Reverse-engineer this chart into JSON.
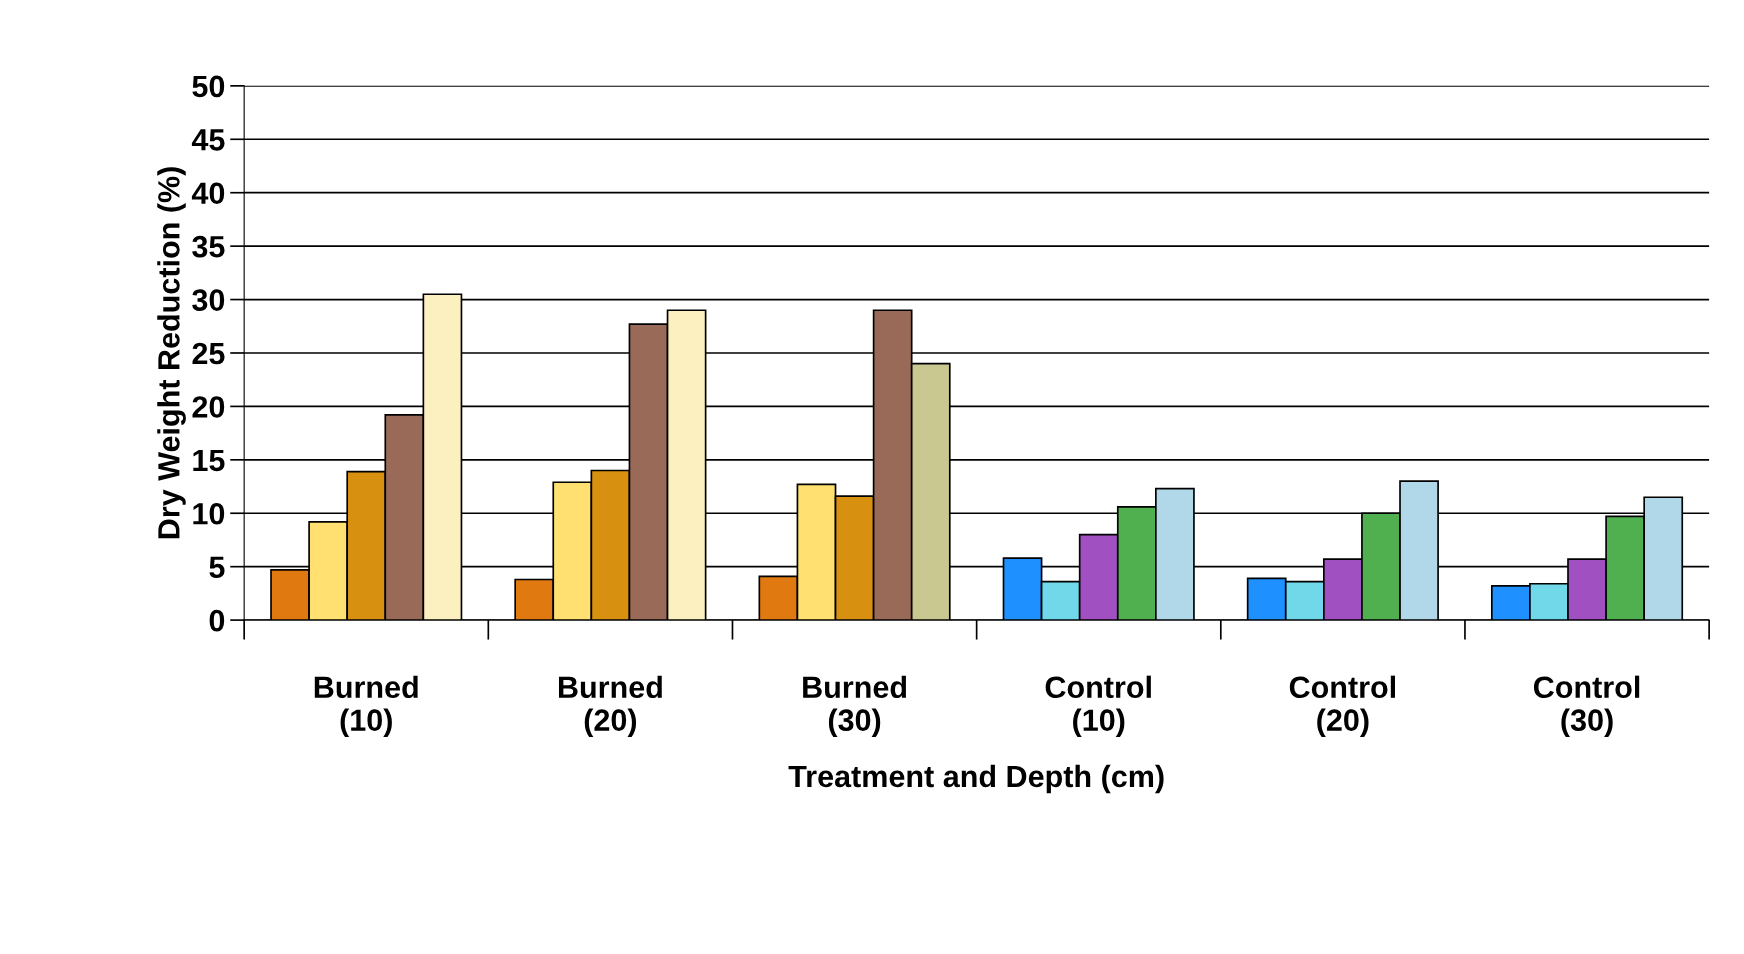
{
  "chart_data": {
    "type": "bar",
    "xlabel": "Treatment and Depth (cm)",
    "ylabel": "Dry Weight Reduction (%)",
    "categories": [
      "Burned\n(10)",
      "Burned\n(20)",
      "Burned\n(30)",
      "Control\n(10)",
      "Control\n(20)",
      "Control\n(30)"
    ],
    "series": [
      {
        "colors": [
          "#e07a10",
          "#e07a10",
          "#e07a10",
          "#1e90ff",
          "#1e90ff",
          "#1e90ff"
        ],
        "values": [
          4.7,
          3.8,
          4.1,
          5.8,
          3.9,
          3.2
        ]
      },
      {
        "colors": [
          "#ffe070",
          "#ffe070",
          "#ffe070",
          "#70d8e8",
          "#70d8e8",
          "#70d8e8"
        ],
        "values": [
          9.2,
          12.9,
          12.7,
          3.6,
          3.6,
          3.4
        ]
      },
      {
        "colors": [
          "#d89010",
          "#d89010",
          "#d89010",
          "#a050c0",
          "#a050c0",
          "#a050c0"
        ],
        "values": [
          13.9,
          14.0,
          11.6,
          8.0,
          5.7,
          5.7
        ]
      },
      {
        "colors": [
          "#9a6a58",
          "#9a6a58",
          "#9a6a58",
          "#50b050",
          "#50b050",
          "#50b050"
        ],
        "values": [
          19.2,
          27.7,
          29.0,
          10.6,
          10.0,
          9.7
        ]
      },
      {
        "colors": [
          "#fdf0c0",
          "#fdf0c0",
          "#c8c890",
          "#b0d8e8",
          "#b0d8e8",
          "#b0d8e8"
        ],
        "values": [
          30.5,
          29.0,
          24.0,
          12.3,
          13.0,
          11.5
        ]
      }
    ],
    "ylim": [
      0,
      50
    ],
    "yticks": [
      0,
      5,
      10,
      15,
      20,
      25,
      30,
      35,
      40,
      45,
      50
    ],
    "grid": "y"
  }
}
